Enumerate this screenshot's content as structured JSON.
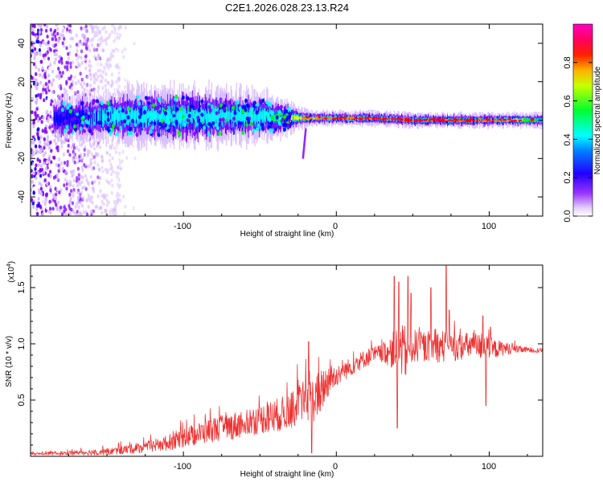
{
  "title": "C2E1.2026.028.23.13.R24",
  "chart_data": [
    {
      "type": "heatmap",
      "xlabel": "Height of straight line (km)",
      "ylabel": "Frequency (Hz)",
      "xlim": [
        -200,
        135
      ],
      "ylim": [
        -50,
        50
      ],
      "xticks": [
        -100,
        0,
        100
      ],
      "yticks": [
        -40,
        -20,
        0,
        20,
        40
      ],
      "xtick_labels": [
        "-100",
        "0",
        "100"
      ],
      "ytick_labels": [
        "-40",
        "-20",
        "0",
        "20",
        "40"
      ],
      "colorbar": {
        "label": "Normalized spectral amplitude",
        "range": [
          0.0,
          1.0
        ],
        "ticks": [
          0.0,
          0.2,
          0.4,
          0.6,
          0.8
        ],
        "tick_labels": [
          "0.0",
          "0.2",
          "0.4",
          "0.6",
          "0.8"
        ],
        "colors": [
          "#ffffff",
          "#d6b8ff",
          "#8000ff",
          "#0000ff",
          "#00ffff",
          "#00ff00",
          "#ffff00",
          "#ff8000",
          "#ff0000",
          "#ff00aa"
        ]
      },
      "band_profile": {
        "x": [
          -175,
          -150,
          -125,
          -100,
          -75,
          -50,
          -35,
          -25,
          -15,
          0,
          25,
          50,
          75,
          100,
          135
        ],
        "center_hz": [
          1,
          2,
          2,
          2,
          2,
          2,
          1,
          1,
          1,
          1,
          1,
          0,
          0,
          0,
          0
        ],
        "half_width_hz": [
          6,
          7,
          8,
          8,
          8,
          7,
          5,
          3,
          2,
          2,
          2,
          2,
          2,
          2,
          2
        ],
        "peak_amplitude": [
          0.35,
          0.45,
          0.5,
          0.5,
          0.5,
          0.5,
          0.6,
          0.75,
          0.8,
          0.85,
          0.95,
          0.95,
          0.95,
          0.9,
          0.5
        ]
      },
      "noise_region_x": [
        -200,
        -130
      ]
    },
    {
      "type": "line",
      "xlabel": "Height of straight line (km)",
      "ylabel": "SNR (10 * v/v)",
      "y_multiplier": "(x10",
      "y_multiplier_exp": "4",
      "y_multiplier_close": ")",
      "xlim": [
        -200,
        135
      ],
      "ylim": [
        0,
        1.7
      ],
      "xticks": [
        -100,
        0,
        100
      ],
      "yticks": [
        0.5,
        1.0,
        1.5
      ],
      "xtick_labels": [
        "-100",
        "0",
        "100"
      ],
      "ytick_labels": [
        "0.5",
        "1.0",
        "1.5"
      ],
      "series": [
        {
          "name": "SNR",
          "color": "#ee3333",
          "x": [
            -200,
            -175,
            -150,
            -125,
            -110,
            -100,
            -90,
            -80,
            -70,
            -60,
            -50,
            -40,
            -30,
            -25,
            -20,
            -15,
            -10,
            -5,
            0,
            10,
            20,
            30,
            40,
            45,
            50,
            60,
            70,
            80,
            90,
            100,
            110,
            120,
            135
          ],
          "y": [
            0.02,
            0.03,
            0.04,
            0.08,
            0.12,
            0.17,
            0.2,
            0.24,
            0.26,
            0.3,
            0.33,
            0.36,
            0.4,
            0.46,
            0.5,
            0.5,
            0.58,
            0.68,
            0.72,
            0.8,
            0.88,
            0.92,
            0.95,
            0.92,
            0.98,
            0.97,
            0.98,
            0.97,
            0.99,
            0.95,
            0.96,
            0.95,
            0.94
          ],
          "jitter": [
            0.01,
            0.02,
            0.03,
            0.05,
            0.07,
            0.09,
            0.1,
            0.11,
            0.12,
            0.13,
            0.13,
            0.15,
            0.16,
            0.18,
            0.18,
            0.2,
            0.2,
            0.15,
            0.1,
            0.08,
            0.08,
            0.08,
            0.2,
            0.25,
            0.15,
            0.12,
            0.15,
            0.12,
            0.12,
            0.1,
            0.06,
            0.03,
            0.02
          ],
          "spikes": [
            {
              "x": -18,
              "y": 1.02
            },
            {
              "x": -16,
              "y": 0.03
            },
            {
              "x": 38,
              "y": 1.6
            },
            {
              "x": 40,
              "y": 0.25
            },
            {
              "x": 41,
              "y": 1.55
            },
            {
              "x": 47,
              "y": 1.6
            },
            {
              "x": 49,
              "y": 1.45
            },
            {
              "x": 62,
              "y": 1.5
            },
            {
              "x": 72,
              "y": 1.7
            },
            {
              "x": 74,
              "y": 1.3
            },
            {
              "x": 96,
              "y": 1.25
            },
            {
              "x": 98,
              "y": 0.45
            },
            {
              "x": 101,
              "y": 1.15
            }
          ]
        }
      ]
    }
  ]
}
